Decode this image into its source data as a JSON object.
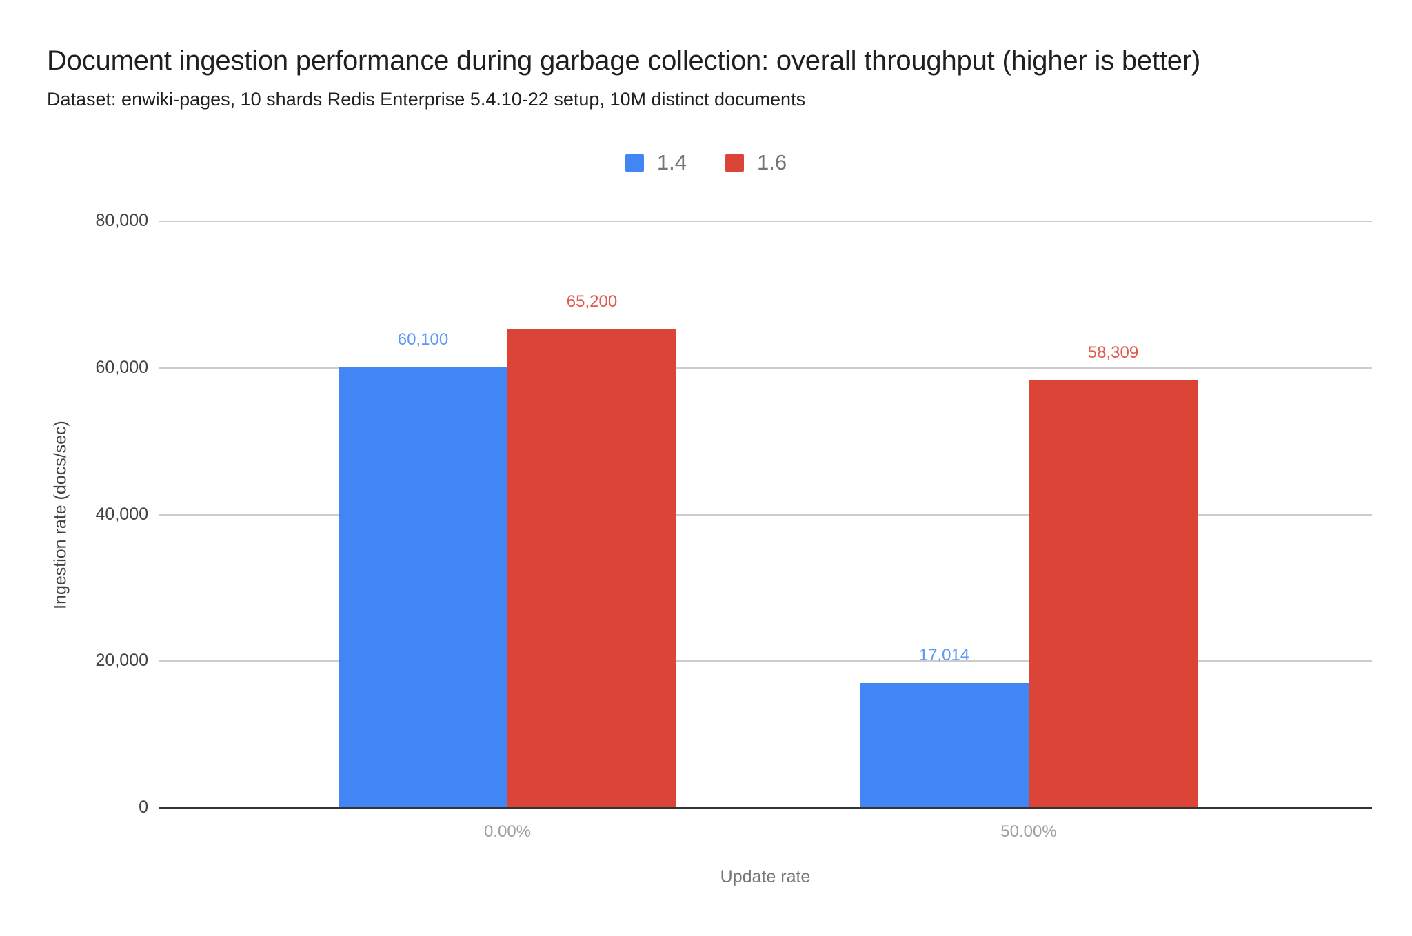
{
  "chart": {
    "title": "Document ingestion performance during garbage collection: overall throughput (higher is better)",
    "subtitle": "Dataset: enwiki-pages, 10 shards Redis Enterprise 5.4.10-22 setup, 10M distinct documents"
  },
  "chart_data": {
    "type": "bar",
    "title": "Document ingestion performance during garbage collection: overall throughput (higher is better)",
    "subtitle": "Dataset: enwiki-pages, 10 shards Redis Enterprise 5.4.10-22 setup, 10M distinct documents",
    "xlabel": "Update rate",
    "ylabel": "Ingestion rate (docs/sec)",
    "categories": [
      "0.00%",
      "50.00%"
    ],
    "series": [
      {
        "name": "1.4",
        "color": "#4285f4",
        "label_color": "#5e97f6",
        "values": [
          60100,
          17014
        ],
        "value_labels": [
          "60,100",
          "17,014"
        ]
      },
      {
        "name": "1.6",
        "color": "#db4437",
        "label_color": "#e0594c",
        "values": [
          65200,
          58309
        ],
        "value_labels": [
          "65,200",
          "58,309"
        ]
      }
    ],
    "ylim": [
      0,
      80000
    ],
    "yticks": [
      {
        "value": 0,
        "label": "0"
      },
      {
        "value": 20000,
        "label": "20,000"
      },
      {
        "value": 40000,
        "label": "40,000"
      },
      {
        "value": 60000,
        "label": "60,000"
      },
      {
        "value": 80000,
        "label": "80,000"
      }
    ],
    "grid": true,
    "legend_position": "top",
    "gridline_color": "#cccccc",
    "baseline_color": "#333333"
  }
}
